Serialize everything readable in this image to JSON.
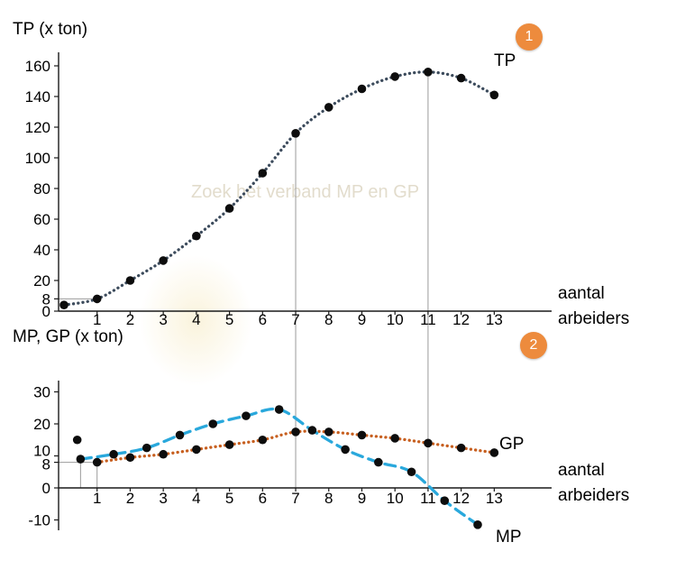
{
  "watermark": {
    "text": "Zoek het verband MP en GP"
  },
  "badges": [
    {
      "label": "1",
      "color": "#ed8b3d"
    },
    {
      "label": "2",
      "color": "#ed8b3d"
    }
  ],
  "chart_data": [
    {
      "type": "line",
      "title": "TP (x ton)",
      "xlabel": "aantal arbeiders",
      "xlabel_lines": [
        "aantal",
        "arbeiders"
      ],
      "x_ticks": [
        1,
        2,
        3,
        4,
        5,
        6,
        7,
        8,
        9,
        10,
        11,
        12,
        13
      ],
      "y_ticks": [
        0,
        8,
        20,
        40,
        60,
        80,
        100,
        120,
        140,
        160
      ],
      "xlim": [
        0,
        14.9
      ],
      "ylim": [
        0,
        170
      ],
      "grid_x": [
        7,
        11
      ],
      "guide_y": 8,
      "series": [
        {
          "name": "TP",
          "style": "dotted",
          "color": "#3c4b5c",
          "x": [
            0,
            1,
            2,
            3,
            4,
            5,
            6,
            7,
            8,
            9,
            10,
            11,
            12,
            13
          ],
          "values": [
            4,
            8,
            20,
            33,
            49,
            67,
            90,
            116,
            133,
            145,
            153,
            156,
            152,
            141
          ]
        }
      ]
    },
    {
      "type": "line",
      "title": "MP, GP (x ton)",
      "xlabel": "aantal arbeiders",
      "xlabel_lines": [
        "aantal",
        "arbeiders"
      ],
      "x_ticks": [
        1,
        2,
        3,
        4,
        5,
        6,
        7,
        8,
        9,
        10,
        11,
        12,
        13
      ],
      "y_ticks": [
        -10,
        0,
        8,
        10,
        20,
        30
      ],
      "xlim": [
        0,
        14.9
      ],
      "ylim": [
        -14,
        34
      ],
      "guide_y": 8,
      "guide_x": [
        0.5,
        1
      ],
      "series": [
        {
          "name": "GP",
          "style": "dotted",
          "color": "#c75f1f",
          "x": [
            1,
            2,
            3,
            4,
            5,
            6,
            7,
            8,
            9,
            10,
            11,
            12,
            13
          ],
          "values": [
            8,
            9.5,
            10.5,
            12,
            13.5,
            15,
            17.5,
            17.5,
            16.5,
            15.5,
            14,
            12.5,
            11
          ]
        },
        {
          "name": "MP",
          "style": "dashed",
          "color": "#29a8dc",
          "x": [
            0.5,
            1.5,
            2.5,
            3.5,
            4.5,
            5.5,
            6.5,
            7.5,
            8.5,
            9.5,
            10.5,
            11.5,
            12.5
          ],
          "values": [
            9,
            10.5,
            12.5,
            16.5,
            20,
            22.5,
            24.5,
            18,
            12,
            8,
            5,
            -4,
            -11.5
          ]
        }
      ],
      "stray_points": [
        {
          "x": 0.4,
          "value": 15
        }
      ]
    }
  ]
}
